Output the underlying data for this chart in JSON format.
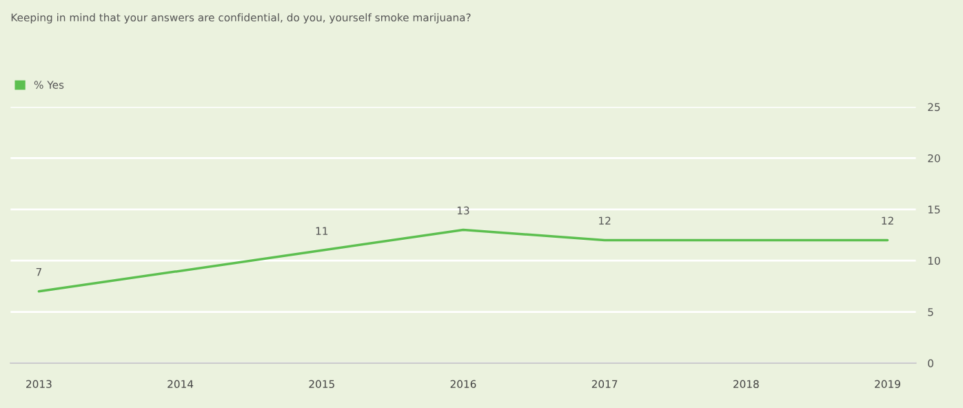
{
  "chart_data": {
    "type": "line",
    "title": "Keeping in mind that your answers are confidential, do you, yourself smoke marijuana?",
    "x": [
      2013,
      2015,
      2016,
      2017,
      2019
    ],
    "series": [
      {
        "name": "% Yes",
        "color": "#5cbf4f",
        "values": [
          7,
          11,
          13,
          12,
          12
        ]
      }
    ],
    "xlim": [
      2012.8,
      2019.2
    ],
    "xticks": [
      2013,
      2014,
      2015,
      2016,
      2017,
      2018,
      2019
    ],
    "ylim": [
      0,
      25
    ],
    "yticks": [
      0,
      5,
      10,
      15,
      20,
      25
    ],
    "grid": "y",
    "legend": "top left",
    "data_labels": true,
    "marker": "none",
    "line_style": "solid"
  }
}
